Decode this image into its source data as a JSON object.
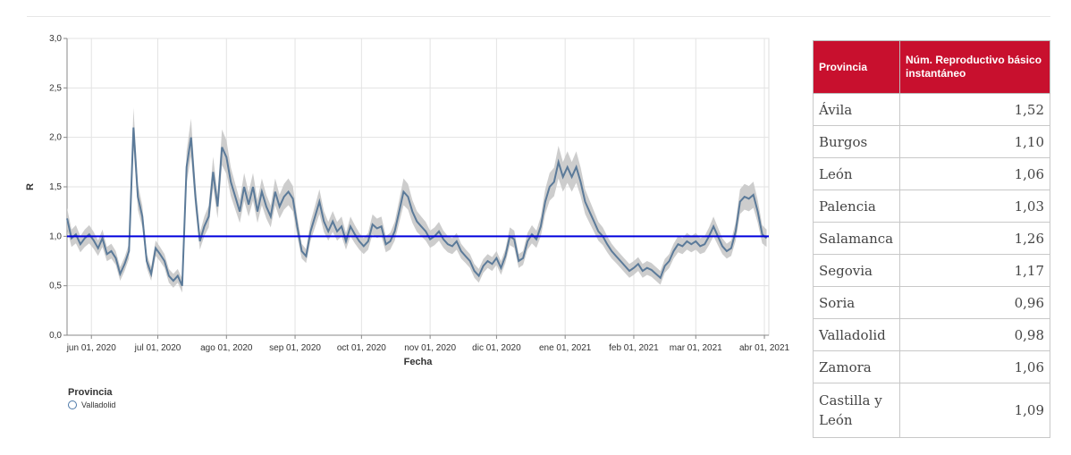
{
  "chart_data": {
    "type": "line",
    "xlabel": "Fecha",
    "ylabel": "R",
    "ylim": [
      0,
      3
    ],
    "y_ticks": [
      "0,0",
      "0,5",
      "1,0",
      "1,5",
      "2,0",
      "2,5",
      "3,0"
    ],
    "x_ticks": [
      {
        "date": "2020-06-01",
        "label": "jun 01, 2020"
      },
      {
        "date": "2020-07-01",
        "label": "jul 01, 2020"
      },
      {
        "date": "2020-08-01",
        "label": "ago 01, 2020"
      },
      {
        "date": "2020-09-01",
        "label": "sep 01, 2020"
      },
      {
        "date": "2020-10-01",
        "label": "oct 01, 2020"
      },
      {
        "date": "2020-11-01",
        "label": "nov 01, 2020"
      },
      {
        "date": "2020-12-01",
        "label": "dic 01, 2020"
      },
      {
        "date": "2021-01-01",
        "label": "ene 01, 2021"
      },
      {
        "date": "2021-02-01",
        "label": "feb 01, 2021"
      },
      {
        "date": "2021-03-01",
        "label": "mar 01, 2021"
      },
      {
        "date": "2021-04-01",
        "label": "abr 01, 2021"
      }
    ],
    "x_range": [
      "2020-05-21",
      "2021-04-03"
    ],
    "grid": true,
    "reference_line": {
      "y": 1.0,
      "color": "#0000dd"
    },
    "legend": {
      "title": "Provincia",
      "position": "bottom-left"
    },
    "series": [
      {
        "name": "Valladolid",
        "color": "#5b7a99",
        "band_color": "#c8c8c8",
        "points": [
          [
            "2020-05-21",
            1.18
          ],
          [
            "2020-05-23",
            0.98
          ],
          [
            "2020-05-25",
            1.02
          ],
          [
            "2020-05-27",
            0.92
          ],
          [
            "2020-05-29",
            0.98
          ],
          [
            "2020-05-31",
            1.02
          ],
          [
            "2020-06-02",
            0.96
          ],
          [
            "2020-06-04",
            0.88
          ],
          [
            "2020-06-06",
            0.98
          ],
          [
            "2020-06-08",
            0.82
          ],
          [
            "2020-06-10",
            0.85
          ],
          [
            "2020-06-12",
            0.78
          ],
          [
            "2020-06-14",
            0.62
          ],
          [
            "2020-06-16",
            0.72
          ],
          [
            "2020-06-18",
            0.85
          ],
          [
            "2020-06-20",
            2.1
          ],
          [
            "2020-06-22",
            1.4
          ],
          [
            "2020-06-24",
            1.2
          ],
          [
            "2020-06-26",
            0.75
          ],
          [
            "2020-06-28",
            0.62
          ],
          [
            "2020-06-30",
            0.88
          ],
          [
            "2020-07-02",
            0.82
          ],
          [
            "2020-07-04",
            0.75
          ],
          [
            "2020-07-06",
            0.6
          ],
          [
            "2020-07-08",
            0.55
          ],
          [
            "2020-07-10",
            0.6
          ],
          [
            "2020-07-12",
            0.5
          ],
          [
            "2020-07-14",
            1.7
          ],
          [
            "2020-07-16",
            2.0
          ],
          [
            "2020-07-18",
            1.4
          ],
          [
            "2020-07-20",
            0.95
          ],
          [
            "2020-07-22",
            1.1
          ],
          [
            "2020-07-24",
            1.2
          ],
          [
            "2020-07-26",
            1.65
          ],
          [
            "2020-07-28",
            1.3
          ],
          [
            "2020-07-30",
            1.9
          ],
          [
            "2020-08-01",
            1.8
          ],
          [
            "2020-08-03",
            1.55
          ],
          [
            "2020-08-05",
            1.4
          ],
          [
            "2020-08-07",
            1.25
          ],
          [
            "2020-08-09",
            1.5
          ],
          [
            "2020-08-11",
            1.32
          ],
          [
            "2020-08-13",
            1.5
          ],
          [
            "2020-08-15",
            1.25
          ],
          [
            "2020-08-17",
            1.45
          ],
          [
            "2020-08-19",
            1.3
          ],
          [
            "2020-08-21",
            1.2
          ],
          [
            "2020-08-23",
            1.45
          ],
          [
            "2020-08-25",
            1.3
          ],
          [
            "2020-08-27",
            1.4
          ],
          [
            "2020-08-29",
            1.45
          ],
          [
            "2020-08-31",
            1.38
          ],
          [
            "2020-09-02",
            1.1
          ],
          [
            "2020-09-04",
            0.85
          ],
          [
            "2020-09-06",
            0.8
          ],
          [
            "2020-09-08",
            1.05
          ],
          [
            "2020-09-10",
            1.2
          ],
          [
            "2020-09-12",
            1.35
          ],
          [
            "2020-09-14",
            1.15
          ],
          [
            "2020-09-16",
            1.05
          ],
          [
            "2020-09-18",
            1.15
          ],
          [
            "2020-09-20",
            1.05
          ],
          [
            "2020-09-22",
            1.1
          ],
          [
            "2020-09-24",
            0.95
          ],
          [
            "2020-09-26",
            1.1
          ],
          [
            "2020-09-28",
            1.02
          ],
          [
            "2020-09-30",
            0.95
          ],
          [
            "2020-10-02",
            0.9
          ],
          [
            "2020-10-04",
            0.95
          ],
          [
            "2020-10-06",
            1.12
          ],
          [
            "2020-10-08",
            1.08
          ],
          [
            "2020-10-10",
            1.1
          ],
          [
            "2020-10-12",
            0.92
          ],
          [
            "2020-10-14",
            0.95
          ],
          [
            "2020-10-16",
            1.05
          ],
          [
            "2020-10-18",
            1.25
          ],
          [
            "2020-10-20",
            1.45
          ],
          [
            "2020-10-22",
            1.4
          ],
          [
            "2020-10-24",
            1.25
          ],
          [
            "2020-10-26",
            1.15
          ],
          [
            "2020-10-28",
            1.1
          ],
          [
            "2020-10-30",
            1.05
          ],
          [
            "2020-11-01",
            0.97
          ],
          [
            "2020-11-03",
            1.0
          ],
          [
            "2020-11-05",
            1.05
          ],
          [
            "2020-11-07",
            0.97
          ],
          [
            "2020-11-09",
            0.92
          ],
          [
            "2020-11-11",
            0.9
          ],
          [
            "2020-11-13",
            0.95
          ],
          [
            "2020-11-15",
            0.85
          ],
          [
            "2020-11-17",
            0.8
          ],
          [
            "2020-11-19",
            0.75
          ],
          [
            "2020-11-21",
            0.65
          ],
          [
            "2020-11-23",
            0.6
          ],
          [
            "2020-11-25",
            0.7
          ],
          [
            "2020-11-27",
            0.75
          ],
          [
            "2020-11-29",
            0.72
          ],
          [
            "2020-12-01",
            0.78
          ],
          [
            "2020-12-03",
            0.68
          ],
          [
            "2020-12-05",
            0.8
          ],
          [
            "2020-12-07",
            1.0
          ],
          [
            "2020-12-09",
            0.97
          ],
          [
            "2020-12-11",
            0.75
          ],
          [
            "2020-12-13",
            0.78
          ],
          [
            "2020-12-15",
            0.95
          ],
          [
            "2020-12-17",
            1.02
          ],
          [
            "2020-12-19",
            0.97
          ],
          [
            "2020-12-21",
            1.1
          ],
          [
            "2020-12-23",
            1.35
          ],
          [
            "2020-12-25",
            1.5
          ],
          [
            "2020-12-27",
            1.55
          ],
          [
            "2020-12-29",
            1.75
          ],
          [
            "2020-12-31",
            1.6
          ],
          [
            "2021-01-02",
            1.7
          ],
          [
            "2021-01-04",
            1.6
          ],
          [
            "2021-01-06",
            1.7
          ],
          [
            "2021-01-08",
            1.55
          ],
          [
            "2021-01-10",
            1.35
          ],
          [
            "2021-01-12",
            1.25
          ],
          [
            "2021-01-14",
            1.15
          ],
          [
            "2021-01-16",
            1.05
          ],
          [
            "2021-01-18",
            1.0
          ],
          [
            "2021-01-20",
            0.92
          ],
          [
            "2021-01-22",
            0.85
          ],
          [
            "2021-01-24",
            0.8
          ],
          [
            "2021-01-26",
            0.75
          ],
          [
            "2021-01-28",
            0.7
          ],
          [
            "2021-01-30",
            0.65
          ],
          [
            "2021-02-01",
            0.68
          ],
          [
            "2021-02-03",
            0.72
          ],
          [
            "2021-02-05",
            0.65
          ],
          [
            "2021-02-07",
            0.68
          ],
          [
            "2021-02-09",
            0.66
          ],
          [
            "2021-02-11",
            0.62
          ],
          [
            "2021-02-13",
            0.58
          ],
          [
            "2021-02-15",
            0.7
          ],
          [
            "2021-02-17",
            0.75
          ],
          [
            "2021-02-19",
            0.85
          ],
          [
            "2021-02-21",
            0.92
          ],
          [
            "2021-02-23",
            0.9
          ],
          [
            "2021-02-25",
            0.95
          ],
          [
            "2021-02-27",
            0.92
          ],
          [
            "2021-03-01",
            0.95
          ],
          [
            "2021-03-03",
            0.9
          ],
          [
            "2021-03-05",
            0.92
          ],
          [
            "2021-03-07",
            1.0
          ],
          [
            "2021-03-09",
            1.1
          ],
          [
            "2021-03-11",
            1.0
          ],
          [
            "2021-03-13",
            0.9
          ],
          [
            "2021-03-15",
            0.85
          ],
          [
            "2021-03-17",
            0.88
          ],
          [
            "2021-03-19",
            1.05
          ],
          [
            "2021-03-21",
            1.35
          ],
          [
            "2021-03-23",
            1.4
          ],
          [
            "2021-03-25",
            1.38
          ],
          [
            "2021-03-27",
            1.42
          ],
          [
            "2021-03-29",
            1.25
          ],
          [
            "2021-03-31",
            1.02
          ],
          [
            "2021-04-02",
            0.98
          ]
        ]
      }
    ]
  },
  "legend": {
    "title": "Provincia",
    "items": [
      "Valladolid"
    ]
  },
  "table": {
    "headers": [
      "Provincia",
      "Núm. Reproductivo básico instantáneo"
    ],
    "rows": [
      {
        "province": "Ávila",
        "value": "1,52"
      },
      {
        "province": "Burgos",
        "value": "1,10"
      },
      {
        "province": "León",
        "value": "1,06"
      },
      {
        "province": "Palencia",
        "value": "1,03"
      },
      {
        "province": "Salamanca",
        "value": "1,26"
      },
      {
        "province": "Segovia",
        "value": "1,17"
      },
      {
        "province": "Soria",
        "value": "0,96"
      },
      {
        "province": "Valladolid",
        "value": "0,98"
      },
      {
        "province": "Zamora",
        "value": "1,06"
      },
      {
        "province": "Castilla y León",
        "value": "1,09"
      }
    ]
  }
}
